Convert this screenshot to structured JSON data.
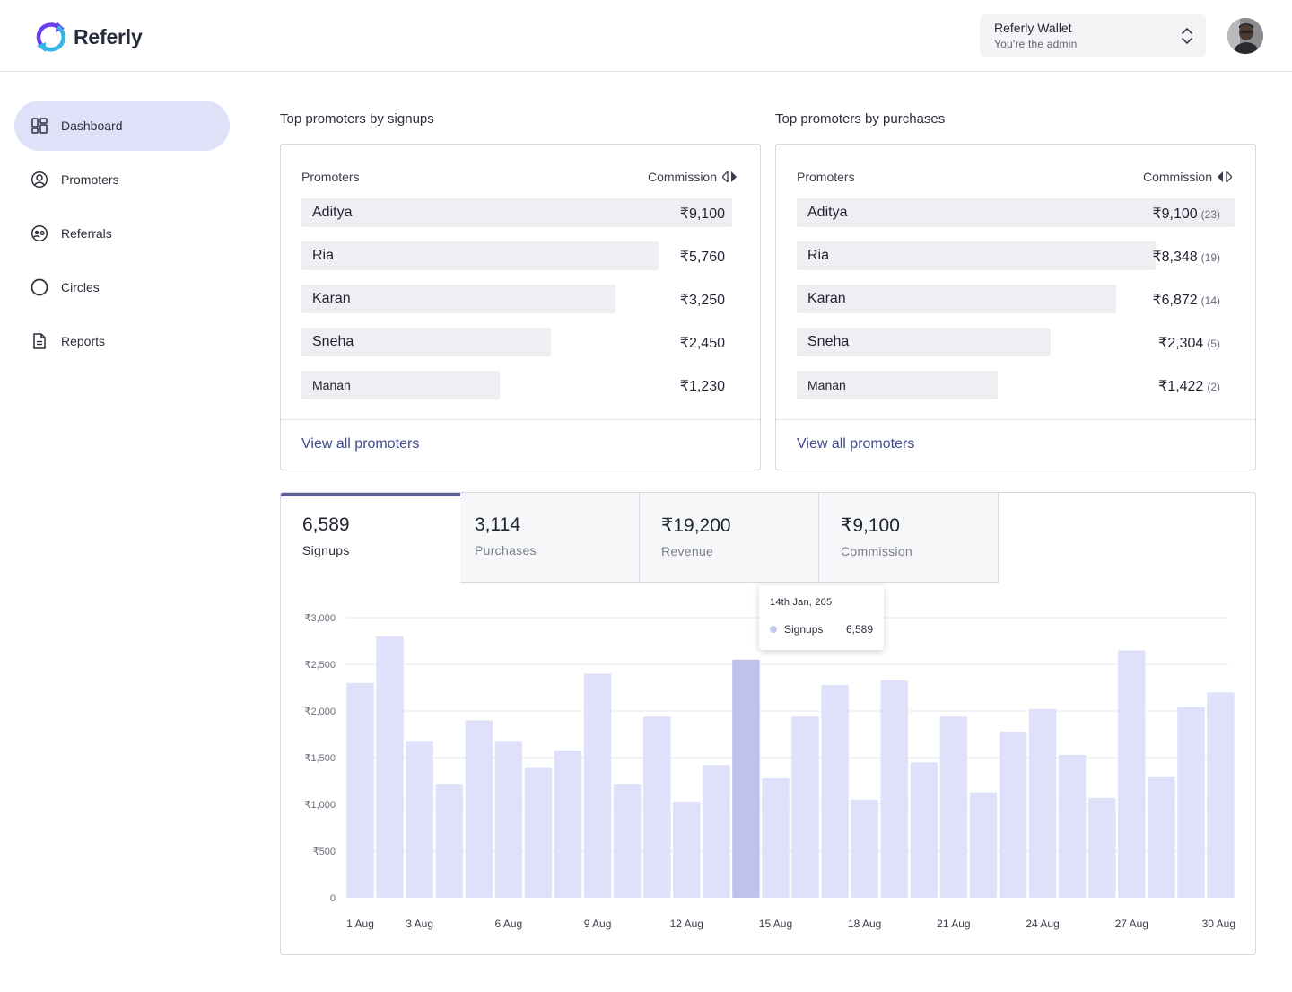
{
  "brand": {
    "name": "Referly"
  },
  "workspace": {
    "name": "Referly Wallet",
    "role": "You're the admin"
  },
  "sidebar": {
    "items": [
      {
        "label": "Dashboard",
        "icon": "dashboard-icon"
      },
      {
        "label": "Promoters",
        "icon": "user-circle-icon"
      },
      {
        "label": "Referrals",
        "icon": "referral-icon"
      },
      {
        "label": "Circles",
        "icon": "circle-icon"
      },
      {
        "label": "Reports",
        "icon": "document-icon"
      }
    ]
  },
  "boards": {
    "signups": {
      "title": "Top promoters by  signups",
      "col_left": "Promoters",
      "col_right": "Commission",
      "footer_link": "View all promoters",
      "rows": [
        {
          "name": "Aditya",
          "value": "₹9,100",
          "share": 1.0
        },
        {
          "name": "Ria",
          "value": "₹5,760",
          "share": 0.83
        },
        {
          "name": "Karan",
          "value": "₹3,250",
          "share": 0.73
        },
        {
          "name": "Sneha",
          "value": "₹2,450",
          "share": 0.58
        },
        {
          "name": "Manan",
          "value": "₹1,230",
          "share": 0.46
        }
      ]
    },
    "purchases": {
      "title": "Top promoters by purchases",
      "col_left": "Promoters",
      "col_right": "Commission",
      "footer_link": "View all promoters",
      "rows": [
        {
          "name": "Aditya",
          "value": "₹9,100",
          "count": "(23)",
          "share": 1.0
        },
        {
          "name": "Ria",
          "value": "₹8,348",
          "count": "(19)",
          "share": 0.82
        },
        {
          "name": "Karan",
          "value": "₹6,872",
          "count": "(14)",
          "share": 0.73
        },
        {
          "name": "Sneha",
          "value": "₹2,304",
          "count": "(5)",
          "share": 0.58
        },
        {
          "name": "Manan",
          "value": "₹1,422",
          "count": "(2)",
          "share": 0.46
        }
      ]
    }
  },
  "stats": [
    {
      "value": "6,589",
      "label": "Signups"
    },
    {
      "value": "3,114",
      "label": "Purchases"
    },
    {
      "value": "₹19,200",
      "label": "Revenue"
    },
    {
      "value": "₹9,100",
      "label": "Commission"
    }
  ],
  "tooltip": {
    "date": "14th Jan, 205",
    "series": "Signups",
    "value": "6,589"
  },
  "colors": {
    "bar": "#dfe1fb",
    "bar_highlight": "#bfc3ec",
    "accent": "#5a6096",
    "link": "#3e4a8c"
  },
  "chart_data": {
    "type": "bar",
    "series_name": "Signups",
    "ylim": [
      0,
      3000
    ],
    "yticks": [
      0,
      500,
      1000,
      1500,
      2000,
      2500,
      3000
    ],
    "ytick_labels": [
      "0",
      "₹500",
      "₹1,000",
      "₹1,500",
      "₹2,000",
      "₹2,500",
      "₹3,000"
    ],
    "categories": [
      "1 Aug",
      "2 Aug",
      "3 Aug",
      "4 Aug",
      "5 Aug",
      "6 Aug",
      "7 Aug",
      "8 Aug",
      "9 Aug",
      "10 Aug",
      "11 Aug",
      "12 Aug",
      "13 Aug",
      "14 Aug",
      "15 Aug",
      "16 Aug",
      "17 Aug",
      "18 Aug",
      "19 Aug",
      "20 Aug",
      "21 Aug",
      "22 Aug",
      "23 Aug",
      "24 Aug",
      "25 Aug",
      "26 Aug",
      "27 Aug",
      "28 Aug",
      "29 Aug",
      "30 Aug"
    ],
    "xtick_labels": [
      "1 Aug",
      "3 Aug",
      "6 Aug",
      "9 Aug",
      "12 Aug",
      "15 Aug",
      "18 Aug",
      "21 Aug",
      "24 Aug",
      "27 Aug",
      "30 Aug"
    ],
    "values": [
      2300,
      2800,
      1680,
      1220,
      1900,
      1680,
      1400,
      1580,
      2400,
      1220,
      1940,
      1030,
      1420,
      2550,
      1280,
      1940,
      2280,
      1050,
      2330,
      1450,
      1940,
      1130,
      1780,
      2020,
      1530,
      1070,
      2650,
      1300,
      2040,
      2200
    ],
    "highlight_index": 13
  }
}
